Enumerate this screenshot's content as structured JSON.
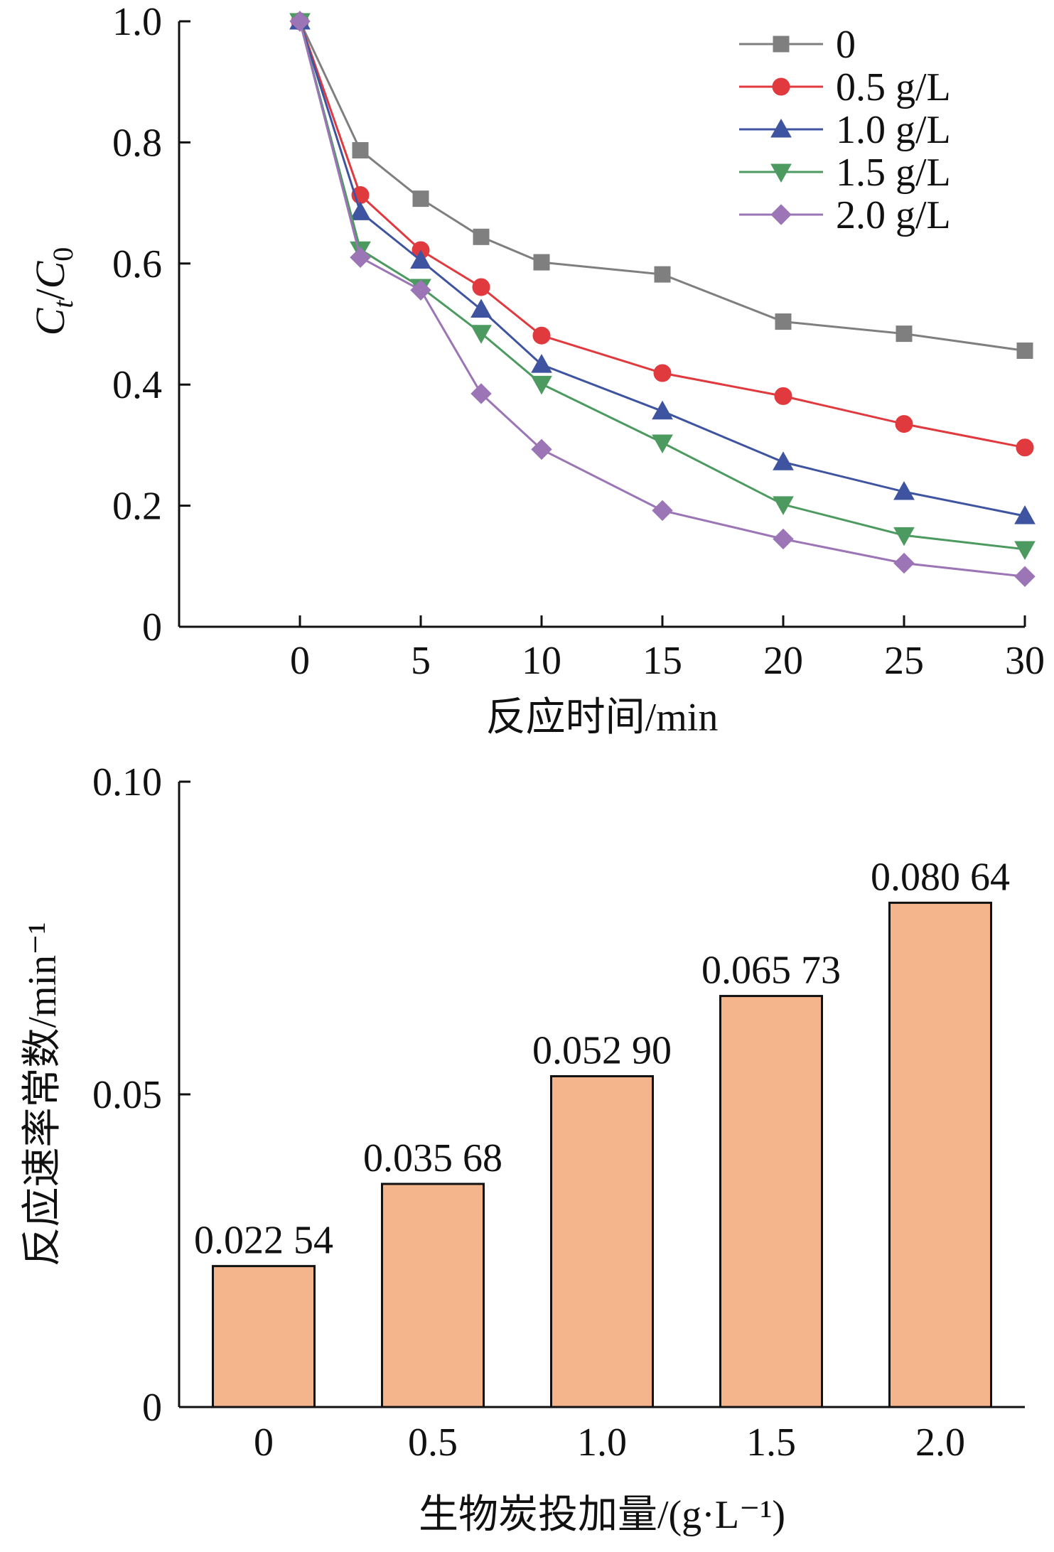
{
  "chart_data": [
    {
      "type": "line",
      "title": "",
      "xlabel": "反应时间/min",
      "ylabel": "Ct/C0",
      "ylabel_parts": {
        "c1": "C",
        "sub1": "t",
        "slash": "/",
        "c2": "C",
        "sub2": "0"
      },
      "xlim": [
        -5,
        30
      ],
      "ylim": [
        0,
        1.0
      ],
      "xticks": [
        0,
        5,
        10,
        15,
        20,
        25,
        30
      ],
      "xtick_labels": [
        "0",
        "5",
        "10",
        "15",
        "20",
        "25",
        "30"
      ],
      "yticks": [
        0,
        0.2,
        0.4,
        0.6,
        0.8,
        1.0
      ],
      "ytick_labels": [
        "0",
        "0.2",
        "0.4",
        "0.6",
        "0.8",
        "1.0"
      ],
      "grid": false,
      "legend_position": "top-right",
      "x": [
        0,
        2.5,
        5,
        7.5,
        10,
        15,
        20,
        25,
        30
      ],
      "series": [
        {
          "name": "0",
          "color": "#7f7f7f",
          "marker": "square",
          "values": [
            1.0,
            0.787,
            0.707,
            0.644,
            0.602,
            0.582,
            0.504,
            0.484,
            0.456
          ]
        },
        {
          "name": "0.5 g/L",
          "color": "#e0393e",
          "marker": "circle",
          "values": [
            1.0,
            0.713,
            0.622,
            0.561,
            0.481,
            0.419,
            0.381,
            0.335,
            0.296
          ]
        },
        {
          "name": "1.0 g/L",
          "color": "#3f54a0",
          "marker": "triangle-up",
          "values": [
            1.0,
            0.685,
            0.605,
            0.524,
            0.433,
            0.356,
            0.272,
            0.223,
            0.183
          ]
        },
        {
          "name": "1.5 g/L",
          "color": "#4c9a60",
          "marker": "triangle-down",
          "values": [
            1.0,
            0.623,
            0.561,
            0.485,
            0.401,
            0.304,
            0.202,
            0.151,
            0.128
          ]
        },
        {
          "name": "2.0 g/L",
          "color": "#9b75b5",
          "marker": "diamond",
          "values": [
            1.0,
            0.61,
            0.556,
            0.385,
            0.293,
            0.192,
            0.145,
            0.105,
            0.083
          ]
        }
      ]
    },
    {
      "type": "bar",
      "title": "",
      "xlabel": "生物炭投加量/(g·L⁻¹)",
      "ylabel": "反应速率常数/min⁻¹",
      "categories": [
        "0",
        "0.5",
        "1.0",
        "1.5",
        "2.0"
      ],
      "values": [
        0.02254,
        0.03568,
        0.0529,
        0.06573,
        0.08064
      ],
      "value_labels": [
        "0.022 54",
        "0.035 68",
        "0.052 90",
        "0.065 73",
        "0.080 64"
      ],
      "ylim": [
        0,
        0.1
      ],
      "yticks": [
        0,
        0.05,
        0.1
      ],
      "ytick_labels": [
        "0",
        "0.05",
        "0.10"
      ],
      "grid": false,
      "bar_color": "#f4b48c",
      "bar_edge_color": "#111111"
    }
  ]
}
